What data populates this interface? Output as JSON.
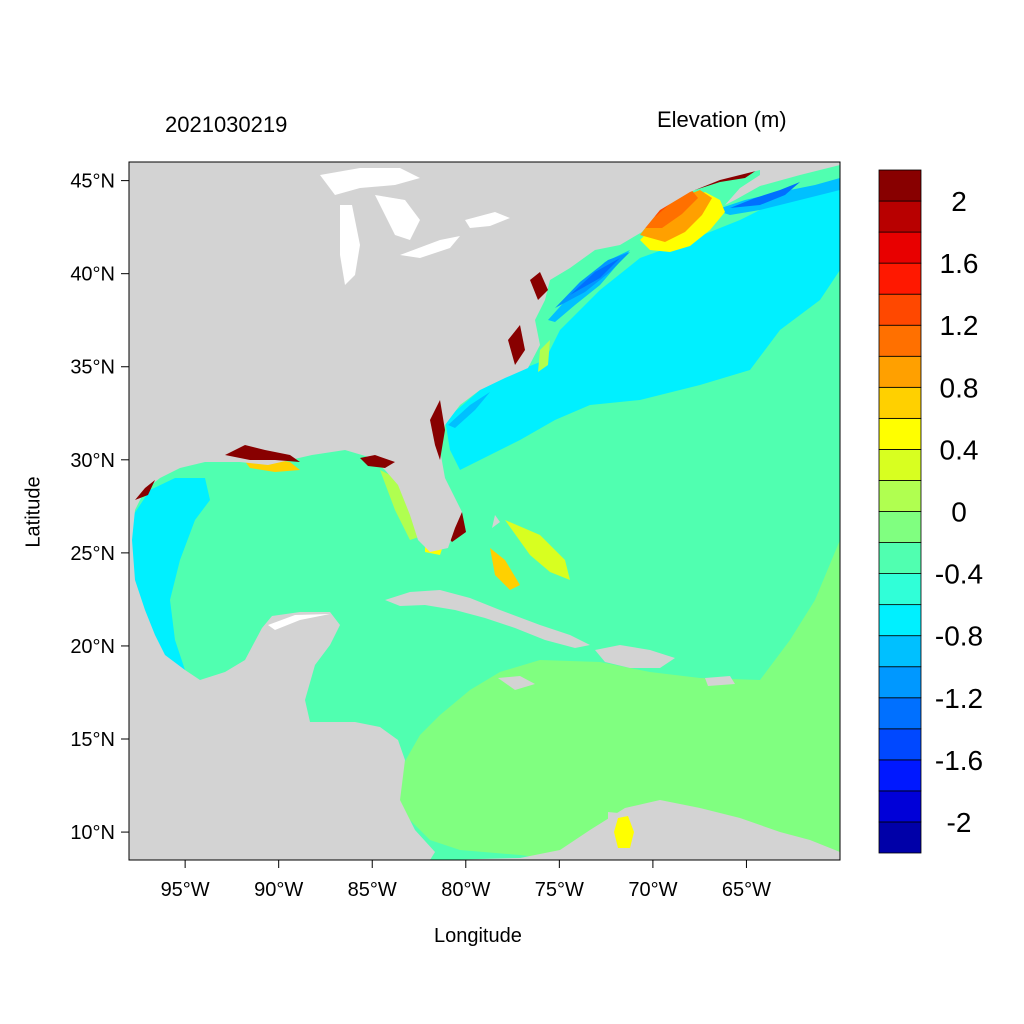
{
  "map": {
    "date_label": "2021030219",
    "units_label": "Elevation (m)",
    "xlabel": "Longitude",
    "ylabel": "Latitude"
  },
  "chart_data": {
    "type": "heatmap",
    "title": "",
    "date_label": "2021030219",
    "xlabel": "Longitude",
    "ylabel": "Latitude",
    "xlim": [
      -98,
      -60
    ],
    "ylim": [
      8.5,
      46
    ],
    "x_ticks": [
      -95,
      -90,
      -85,
      -80,
      -75,
      -70,
      -65
    ],
    "x_tick_labels": [
      "95°W",
      "90°W",
      "85°W",
      "80°W",
      "75°W",
      "70°W",
      "65°W"
    ],
    "y_ticks": [
      10,
      15,
      20,
      25,
      30,
      35,
      40,
      45
    ],
    "y_tick_labels": [
      "10°N",
      "15°N",
      "20°N",
      "25°N",
      "30°N",
      "35°N",
      "40°N",
      "45°N"
    ],
    "colorbar": {
      "title": "Elevation (m)",
      "levels": [
        -2.2,
        -2.0,
        -1.8,
        -1.6,
        -1.4,
        -1.2,
        -1.0,
        -0.8,
        -0.6,
        -0.4,
        -0.2,
        0.0,
        0.2,
        0.4,
        0.6,
        0.8,
        1.0,
        1.2,
        1.4,
        1.6,
        1.8,
        2.0,
        2.2
      ],
      "colors": [
        "#0000a8",
        "#0000d8",
        "#0018ff",
        "#0048ff",
        "#0070ff",
        "#0098ff",
        "#00c0ff",
        "#00f0ff",
        "#30ffd8",
        "#50ffb0",
        "#80ff80",
        "#b0ff50",
        "#d8ff20",
        "#ffff00",
        "#ffd000",
        "#ffa000",
        "#ff7000",
        "#ff4800",
        "#ff1800",
        "#e80000",
        "#b80000",
        "#880000"
      ],
      "tick_values": [
        -2,
        -1.6,
        -1.2,
        -0.8,
        -0.4,
        0,
        0.4,
        0.8,
        1.2,
        1.6,
        2
      ],
      "tick_labels": [
        "-2",
        "-1.6",
        "-1.2",
        "-0.8",
        "-0.4",
        "0",
        "0.4",
        "0.8",
        "1.2",
        "1.6",
        "2"
      ]
    },
    "land_color": "#d3d3d3",
    "lake_color": "#ffffff"
  }
}
